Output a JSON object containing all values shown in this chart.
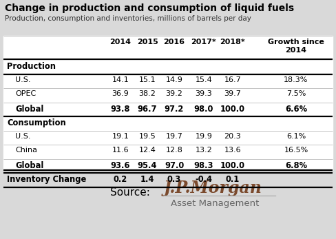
{
  "title": "Change in production and consumption of liquid fuels",
  "subtitle": "Production, consumption and inventories, millions of barrels per day",
  "title_color": "#000000",
  "subtitle_color": "#333333",
  "background_color": "#d9d9d9",
  "table_background": "#ffffff",
  "rows": [
    {
      "label": "Production",
      "values": [
        "",
        "",
        "",
        "",
        "",
        ""
      ],
      "bold": true,
      "indent": 0,
      "section_header": true
    },
    {
      "label": "U.S.",
      "values": [
        "14.1",
        "15.1",
        "14.9",
        "15.4",
        "16.7",
        "18.3%"
      ],
      "bold": false,
      "indent": 1
    },
    {
      "label": "OPEC",
      "values": [
        "36.9",
        "38.2",
        "39.2",
        "39.3",
        "39.7",
        "7.5%"
      ],
      "bold": false,
      "indent": 1
    },
    {
      "label": "Global",
      "values": [
        "93.8",
        "96.7",
        "97.2",
        "98.0",
        "100.0",
        "6.6%"
      ],
      "bold": true,
      "indent": 1
    },
    {
      "label": "Consumption",
      "values": [
        "",
        "",
        "",
        "",
        "",
        ""
      ],
      "bold": true,
      "indent": 0,
      "section_header": true
    },
    {
      "label": "U.S.",
      "values": [
        "19.1",
        "19.5",
        "19.7",
        "19.9",
        "20.3",
        "6.1%"
      ],
      "bold": false,
      "indent": 1
    },
    {
      "label": "China",
      "values": [
        "11.6",
        "12.4",
        "12.8",
        "13.2",
        "13.6",
        "16.5%"
      ],
      "bold": false,
      "indent": 1
    },
    {
      "label": "Global",
      "values": [
        "93.6",
        "95.4",
        "97.0",
        "98.3",
        "100.0",
        "6.8%"
      ],
      "bold": true,
      "indent": 1
    },
    {
      "label": "Inventory Change",
      "values": [
        "0.2",
        "1.4",
        "0.3",
        "-0.4",
        "0.1",
        ""
      ],
      "bold": true,
      "indent": 0
    }
  ],
  "thick_lines_after": [
    0,
    3,
    7,
    8
  ],
  "thin_lines_after": [
    1,
    2,
    4,
    5,
    6
  ],
  "source_text": "Source:",
  "jpmorgan_text": "J.P.Morgan",
  "asset_text": "Asset Management",
  "jpmorgan_color": "#7b4a2d",
  "source_color": "#000000",
  "asset_color": "#666666"
}
